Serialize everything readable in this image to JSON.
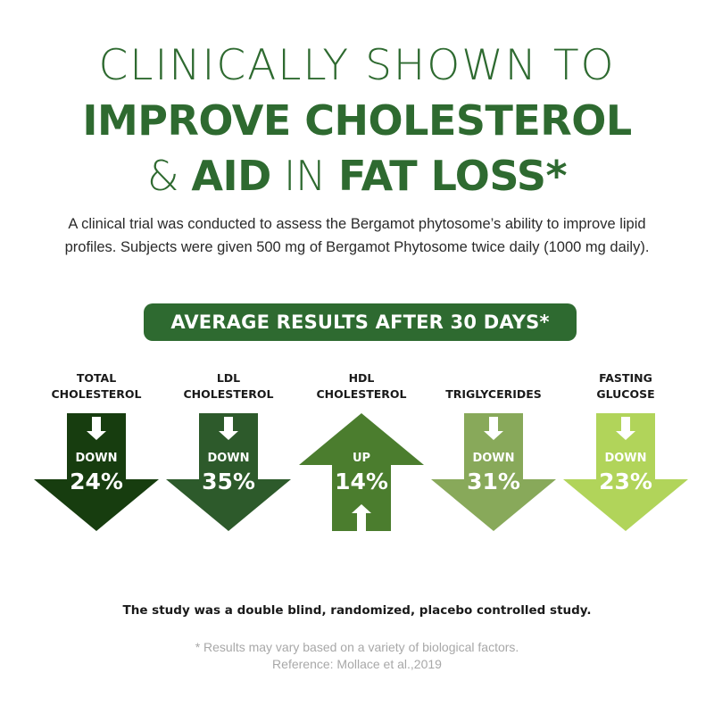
{
  "header": {
    "line1": "CLINICALLY SHOWN TO",
    "line2": "IMPROVE CHOLESTEROL",
    "line3_part1": "& ",
    "line3_part2": "AID",
    "line3_part3": " IN ",
    "line3_part4": "FAT LOSS*"
  },
  "intro": {
    "line1": "A clinical trial was conducted to assess the Bergamot phytosome’s ability to improve lipid",
    "line2": "profiles. Subjects were given 500 mg of Bergamot Phytosome twice daily (1000 mg daily)."
  },
  "banner": {
    "text": "AVERAGE RESULTS AFTER 30 DAYS*"
  },
  "results": [
    {
      "label1": "TOTAL",
      "label2": "CHOLESTEROL",
      "direction": "DOWN",
      "percent": "24%",
      "value": 24,
      "color": "#173d0f"
    },
    {
      "label1": "LDL",
      "label2": "CHOLESTEROL",
      "direction": "DOWN",
      "percent": "35%",
      "value": 35,
      "color": "#2d5a2b"
    },
    {
      "label1": "HDL",
      "label2": "CHOLESTEROL",
      "direction": "UP",
      "percent": "14%",
      "value": 14,
      "color": "#4b7d2e"
    },
    {
      "label1": "",
      "label2": "TRIGLYCERIDES",
      "direction": "DOWN",
      "percent": "31%",
      "value": 31,
      "color": "#88a95a"
    },
    {
      "label1": "FASTING",
      "label2": "GLUCOSE",
      "direction": "DOWN",
      "percent": "23%",
      "value": 23,
      "color": "#b1d45a"
    }
  ],
  "study_note": "The study was a double blind, randomized, placebo controlled study.",
  "footnote": {
    "line1": "* Results may vary based on a variety of biological factors.",
    "line2": "Reference: Mollace et al.,2019"
  }
}
